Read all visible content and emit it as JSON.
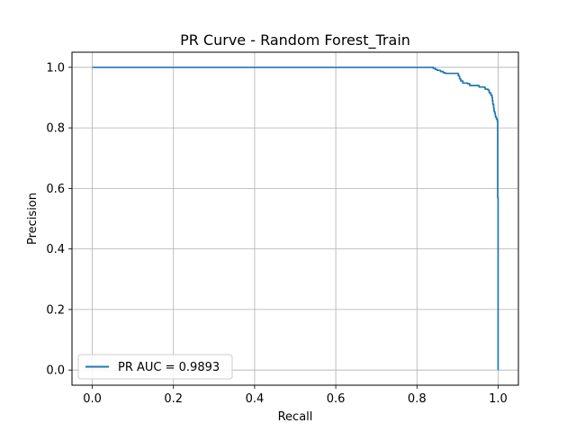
{
  "chart_data": {
    "type": "line",
    "title": "PR Curve - Random Forest_Train",
    "xlabel": "Recall",
    "ylabel": "Precision",
    "xlim": [
      -0.05,
      1.05
    ],
    "ylim": [
      -0.05,
      1.05
    ],
    "xticks": [
      "0.0",
      "0.2",
      "0.4",
      "0.6",
      "0.8",
      "1.0"
    ],
    "yticks": [
      "0.0",
      "0.2",
      "0.4",
      "0.6",
      "0.8",
      "1.0"
    ],
    "grid": true,
    "legend": "lower-left",
    "series": [
      {
        "name": "PR AUC = 0.9893",
        "color": "#1f77b4",
        "step": true,
        "points": [
          [
            0.0,
            1.0
          ],
          [
            0.835,
            1.0
          ],
          [
            0.84,
            0.997
          ],
          [
            0.845,
            0.993
          ],
          [
            0.85,
            0.99
          ],
          [
            0.858,
            0.986
          ],
          [
            0.865,
            0.982
          ],
          [
            0.87,
            0.98
          ],
          [
            0.9,
            0.98
          ],
          [
            0.902,
            0.972
          ],
          [
            0.905,
            0.962
          ],
          [
            0.908,
            0.955
          ],
          [
            0.913,
            0.948
          ],
          [
            0.925,
            0.946
          ],
          [
            0.93,
            0.94
          ],
          [
            0.95,
            0.94
          ],
          [
            0.953,
            0.935
          ],
          [
            0.965,
            0.934
          ],
          [
            0.968,
            0.928
          ],
          [
            0.975,
            0.925
          ],
          [
            0.978,
            0.916
          ],
          [
            0.982,
            0.908
          ],
          [
            0.985,
            0.9
          ],
          [
            0.986,
            0.89
          ],
          [
            0.987,
            0.878
          ],
          [
            0.989,
            0.865
          ],
          [
            0.99,
            0.854
          ],
          [
            0.992,
            0.848
          ],
          [
            0.993,
            0.84
          ],
          [
            0.994,
            0.835
          ],
          [
            0.996,
            0.829
          ],
          [
            0.998,
            0.822
          ],
          [
            0.999,
            0.82
          ],
          [
            0.999,
            0.57
          ],
          [
            1.0,
            0.565
          ],
          [
            1.0,
            0.0
          ]
        ]
      }
    ]
  }
}
